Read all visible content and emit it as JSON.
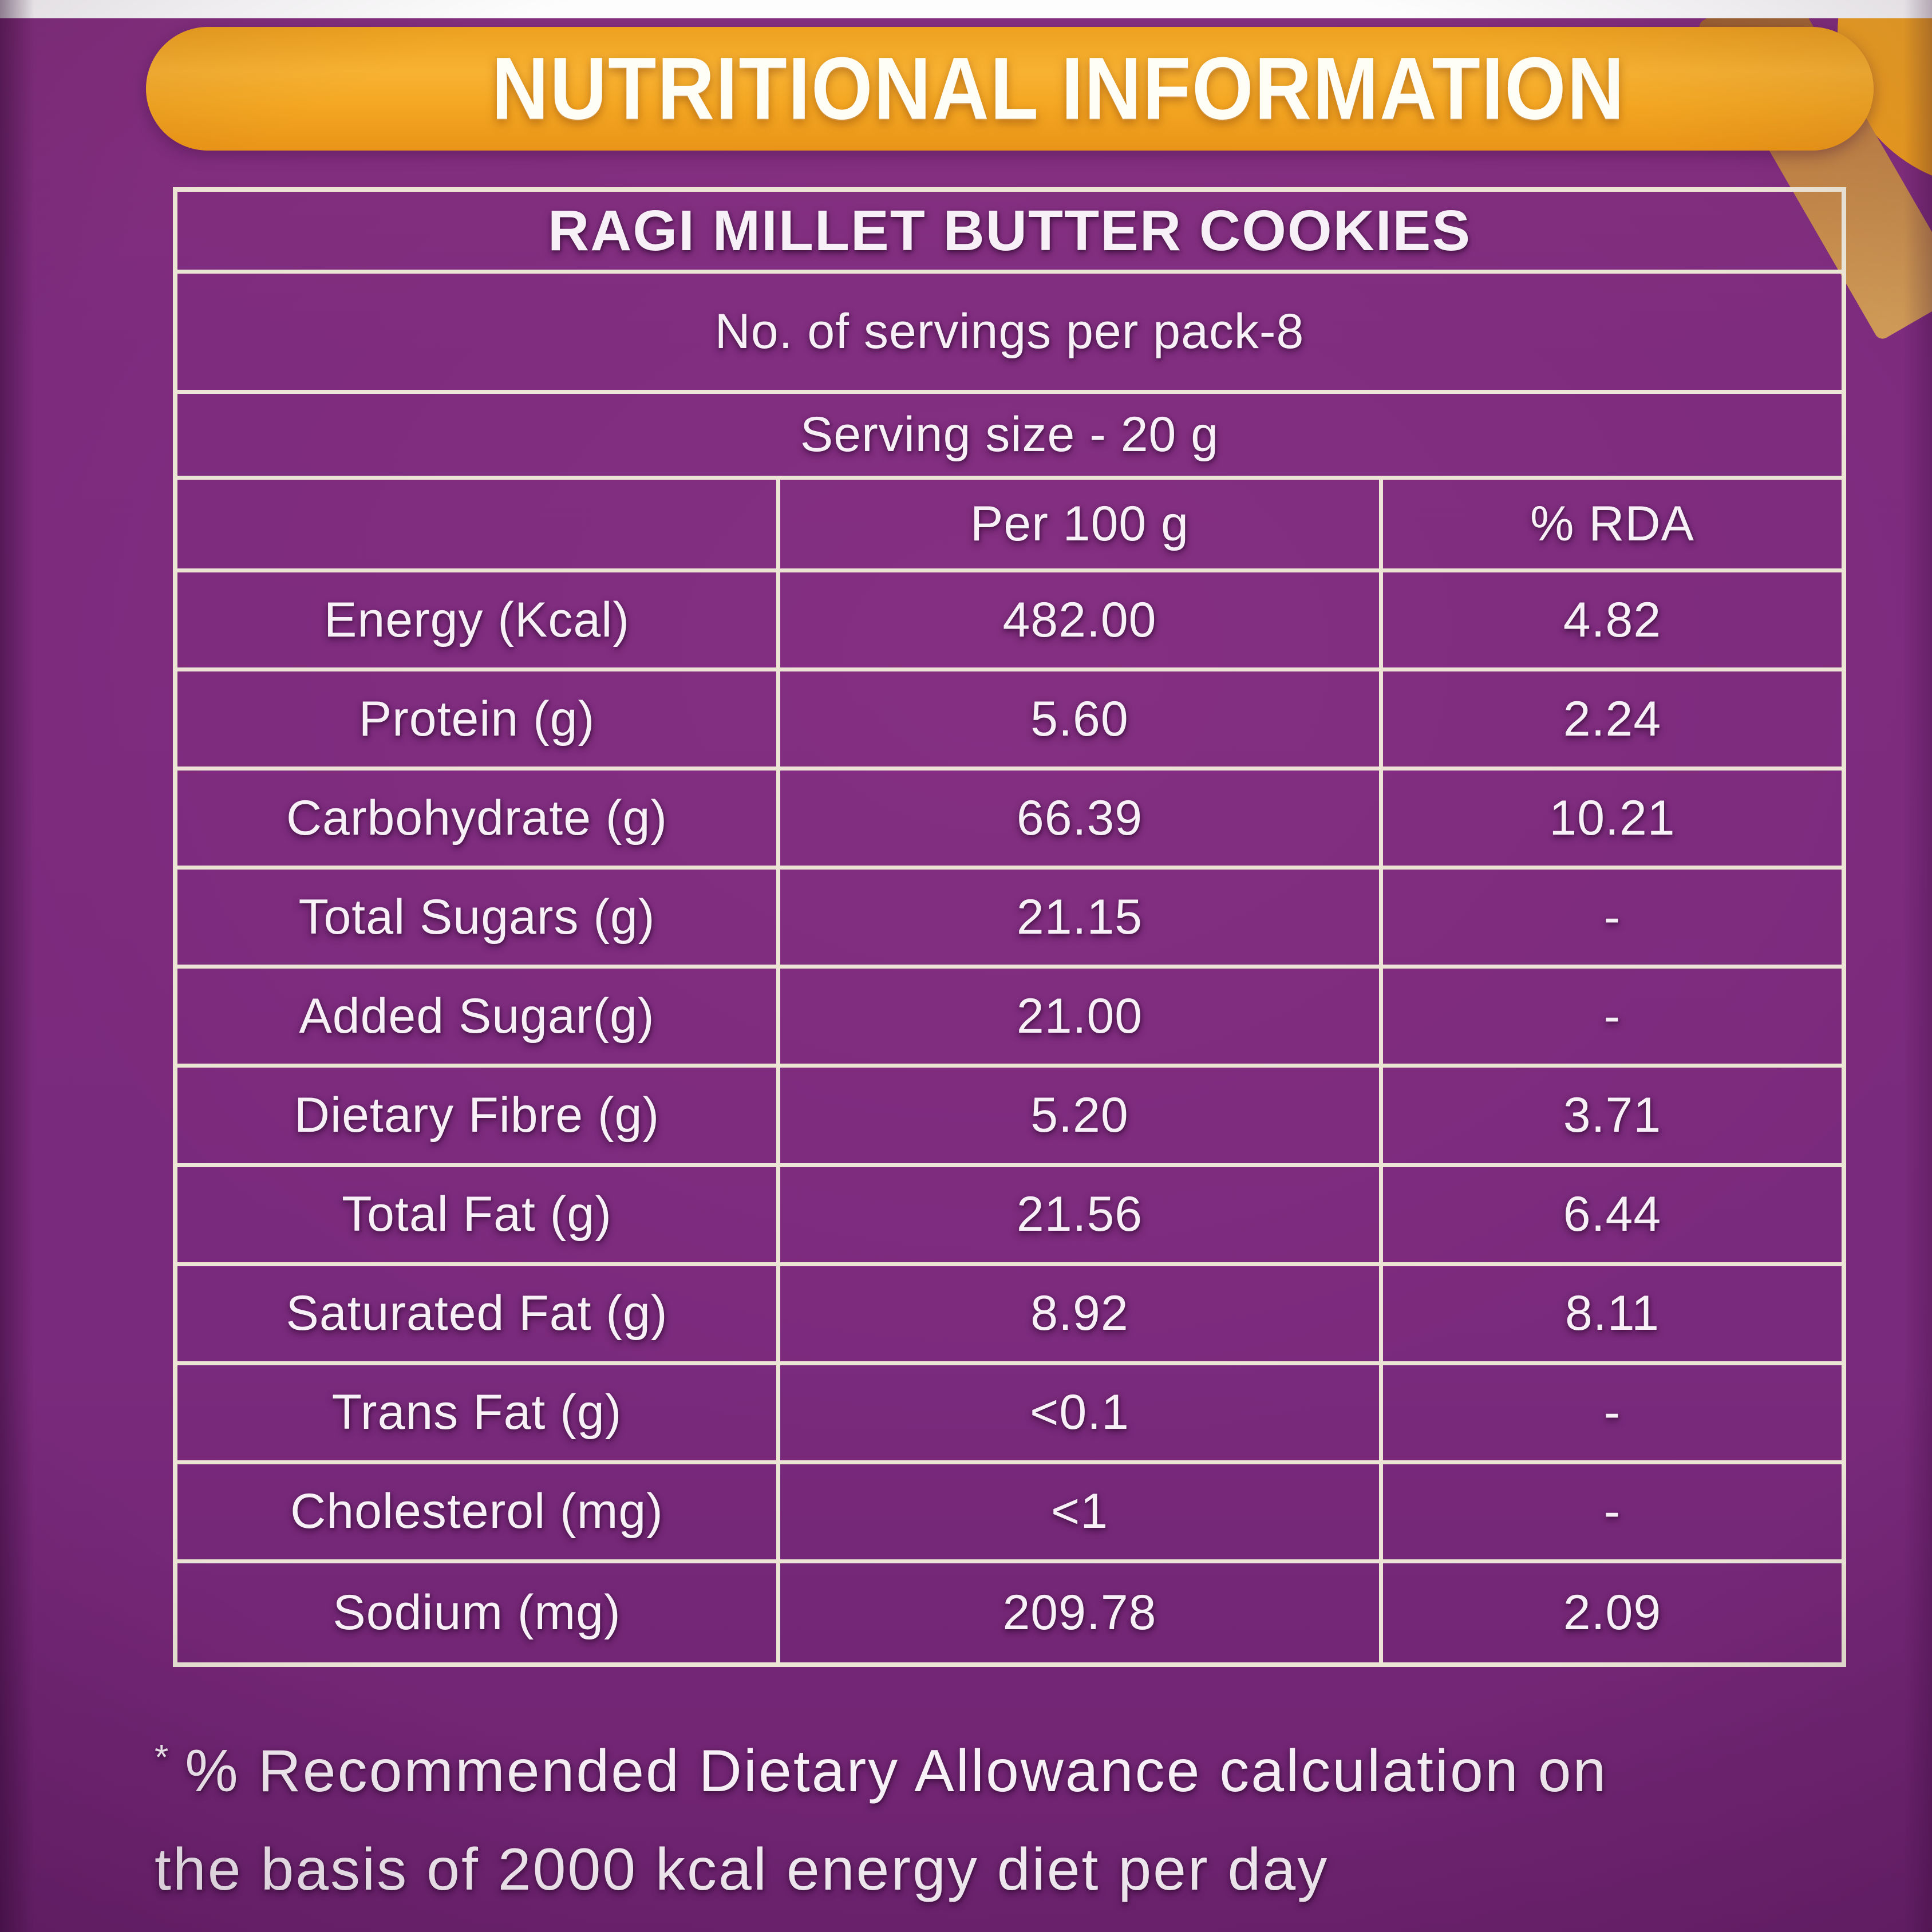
{
  "banner": {
    "title": "NUTRITIONAL INFORMATION"
  },
  "table": {
    "product_title": "RAGI MILLET BUTTER COOKIES",
    "servings_line": "No. of servings per pack-8",
    "serving_size_line": "Serving size - 20 g",
    "columns": [
      "",
      "Per 100 g",
      "% RDA"
    ],
    "rows": [
      {
        "label": "Energy (Kcal)",
        "per_100g": "482.00",
        "rda": "4.82"
      },
      {
        "label": "Protein (g)",
        "per_100g": "5.60",
        "rda": "2.24"
      },
      {
        "label": "Carbohydrate (g)",
        "per_100g": "66.39",
        "rda": "10.21"
      },
      {
        "label": "Total Sugars (g)",
        "per_100g": "21.15",
        "rda": "-"
      },
      {
        "label": "Added Sugar(g)",
        "per_100g": "21.00",
        "rda": "-"
      },
      {
        "label": "Dietary Fibre (g)",
        "per_100g": "5.20",
        "rda": "3.71"
      },
      {
        "label": "Total Fat (g)",
        "per_100g": "21.56",
        "rda": "6.44"
      },
      {
        "label": "Saturated Fat (g)",
        "per_100g": "8.92",
        "rda": "8.11"
      },
      {
        "label": "Trans Fat (g)",
        "per_100g": "<0.1",
        "rda": "-"
      },
      {
        "label": "Cholesterol (mg)",
        "per_100g": "<1",
        "rda": "-"
      },
      {
        "label": "Sodium (mg)",
        "per_100g": "209.78",
        "rda": "2.09"
      }
    ]
  },
  "footnote": {
    "marker": "*",
    "line1": "% Recommended Dietary Allowance calculation on",
    "line2": "the basis of 2000 kcal energy diet per day"
  },
  "colors": {
    "background_purple": "#7b2a7d",
    "banner_orange": "#f4a722",
    "table_line": "#ece5d6",
    "text": "#f7f0f6",
    "swoosh_tan": "#bf8245",
    "top_strip_white": "#fdfdfd"
  }
}
